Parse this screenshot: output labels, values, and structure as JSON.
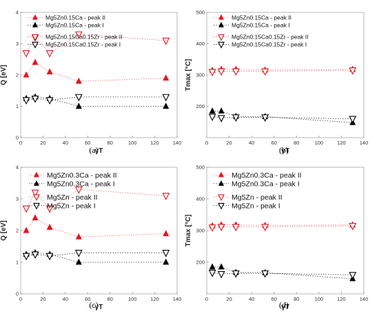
{
  "chart_data": [
    {
      "type": "scatter",
      "panel_label": "(a)",
      "xlabel": "γT",
      "ylabel": "Q [eV]",
      "xlim": [
        0,
        140
      ],
      "ylim": [
        0,
        4
      ],
      "xticks": [
        "0",
        "20",
        "40",
        "60",
        "80",
        "100",
        "120",
        "140"
      ],
      "yticks": [
        "0",
        "1",
        "2",
        "3",
        "4"
      ],
      "legend_position": "top",
      "series": [
        {
          "name": "Mg5Zn0.15Ca - peak II",
          "marker": "filled-triangle",
          "color": "#e8141c",
          "line": "dotted",
          "x": [
            5,
            13,
            26,
            52,
            130
          ],
          "y": [
            2.0,
            2.4,
            2.1,
            1.8,
            1.9
          ]
        },
        {
          "name": "Mg5Zn0.15Ca - peak I",
          "marker": "filled-triangle",
          "color": "#000000",
          "line": "dotted",
          "x": [
            5,
            13,
            26,
            52,
            130
          ],
          "y": [
            1.25,
            1.3,
            1.25,
            1.0,
            1.0
          ]
        },
        {
          "name": "Mg5Zn0.15Ca0.15Zr - peak II",
          "marker": "open-inverted-triangle",
          "color": "#e8141c",
          "line": "dotted",
          "x": [
            5,
            13,
            26,
            52,
            130
          ],
          "y": [
            2.7,
            3.2,
            2.7,
            3.3,
            3.1
          ]
        },
        {
          "name": "Mg5Zn0.15Ca0.15Zr - peak I",
          "marker": "open-inverted-triangle",
          "color": "#000000",
          "line": "dotted",
          "x": [
            5,
            13,
            26,
            52,
            130
          ],
          "y": [
            1.2,
            1.25,
            1.2,
            1.3,
            1.3
          ]
        }
      ]
    },
    {
      "type": "scatter",
      "panel_label": "(b)",
      "xlabel": "γT",
      "ylabel": "Tmax [°C]",
      "xlim": [
        0,
        140
      ],
      "ylim": [
        100,
        500
      ],
      "xticks": [
        "0",
        "20",
        "40",
        "60",
        "80",
        "100",
        "120",
        "140"
      ],
      "yticks": [
        "200",
        "300",
        "400",
        "500"
      ],
      "legend_position": "top",
      "series": [
        {
          "name": "Mg5Zn0.15Ca - peak II",
          "marker": "filled-triangle",
          "color": "#e8141c",
          "line": "dotted",
          "x": [
            5,
            13,
            26,
            52,
            130
          ],
          "y": [
            315,
            318,
            318,
            316,
            318
          ]
        },
        {
          "name": "Mg5Zn0.15Ca - peak I",
          "marker": "filled-triangle",
          "color": "#000000",
          "line": "dotted",
          "x": [
            5,
            13,
            26,
            52,
            130
          ],
          "y": [
            185,
            185,
            168,
            167,
            148
          ]
        },
        {
          "name": "Mg5Zn0.15Ca0.15Zr - peak II",
          "marker": "open-inverted-triangle",
          "color": "#e8141c",
          "line": "dotted",
          "x": [
            5,
            13,
            26,
            52,
            130
          ],
          "y": [
            310,
            312,
            312,
            312,
            315
          ]
        },
        {
          "name": "Mg5Zn0.15Ca0.15Zr - peak I",
          "marker": "open-inverted-triangle",
          "color": "#000000",
          "line": "dotted",
          "x": [
            5,
            13,
            26,
            52,
            130
          ],
          "y": [
            167,
            163,
            165,
            165,
            160
          ]
        }
      ]
    },
    {
      "type": "scatter",
      "panel_label": "(c)",
      "xlabel": "γT",
      "ylabel": "Q [eV]",
      "xlim": [
        0,
        140
      ],
      "ylim": [
        0,
        4
      ],
      "xticks": [
        "0",
        "20",
        "40",
        "60",
        "80",
        "100",
        "120",
        "140"
      ],
      "yticks": [
        "0",
        "1",
        "2",
        "3",
        "4"
      ],
      "legend_position": "top",
      "series": [
        {
          "name": "Mg5Zn0.3Ca - peak II",
          "marker": "filled-triangle",
          "color": "#e8141c",
          "line": "dotted",
          "x": [
            5,
            13,
            26,
            52,
            130
          ],
          "y": [
            2.0,
            2.4,
            2.1,
            1.8,
            1.9
          ]
        },
        {
          "name": "Mg5Zn0.3Ca - peak I",
          "marker": "filled-triangle",
          "color": "#000000",
          "line": "dotted",
          "x": [
            5,
            13,
            26,
            52,
            130
          ],
          "y": [
            1.25,
            1.3,
            1.25,
            1.0,
            1.0
          ]
        },
        {
          "name": "Mg5Zn - peak II",
          "marker": "open-inverted-triangle",
          "color": "#e8141c",
          "line": "dotted",
          "x": [
            5,
            13,
            26,
            52,
            130
          ],
          "y": [
            2.7,
            3.2,
            2.7,
            3.3,
            3.1
          ]
        },
        {
          "name": "Mg5Zn - peak I",
          "marker": "open-inverted-triangle",
          "color": "#000000",
          "line": "dotted",
          "x": [
            5,
            13,
            26,
            52,
            130
          ],
          "y": [
            1.2,
            1.25,
            1.2,
            1.3,
            1.3
          ]
        }
      ]
    },
    {
      "type": "scatter",
      "panel_label": "(d)",
      "xlabel": "γT",
      "ylabel": "Tmax [°C]",
      "xlim": [
        0,
        140
      ],
      "ylim": [
        100,
        500
      ],
      "xticks": [
        "0",
        "20",
        "40",
        "60",
        "80",
        "100",
        "120",
        "140"
      ],
      "yticks": [
        "200",
        "300",
        "400",
        "500"
      ],
      "legend_position": "top",
      "series": [
        {
          "name": "Mg5Zn0.3Ca - peak II",
          "marker": "filled-triangle",
          "color": "#e8141c",
          "line": "dotted",
          "x": [
            5,
            13,
            26,
            52,
            130
          ],
          "y": [
            315,
            318,
            318,
            316,
            318
          ]
        },
        {
          "name": "Mg5Zn0.3Ca - peak I",
          "marker": "filled-triangle",
          "color": "#000000",
          "line": "dotted",
          "x": [
            5,
            13,
            26,
            52,
            130
          ],
          "y": [
            185,
            185,
            168,
            167,
            148
          ]
        },
        {
          "name": "Mg5Zn - peak II",
          "marker": "open-inverted-triangle",
          "color": "#e8141c",
          "line": "dotted",
          "x": [
            5,
            13,
            26,
            52,
            130
          ],
          "y": [
            310,
            312,
            312,
            312,
            315
          ]
        },
        {
          "name": "Mg5Zn - peak I",
          "marker": "open-inverted-triangle",
          "color": "#000000",
          "line": "dotted",
          "x": [
            5,
            13,
            26,
            52,
            130
          ],
          "y": [
            167,
            163,
            165,
            165,
            160
          ]
        }
      ]
    }
  ]
}
